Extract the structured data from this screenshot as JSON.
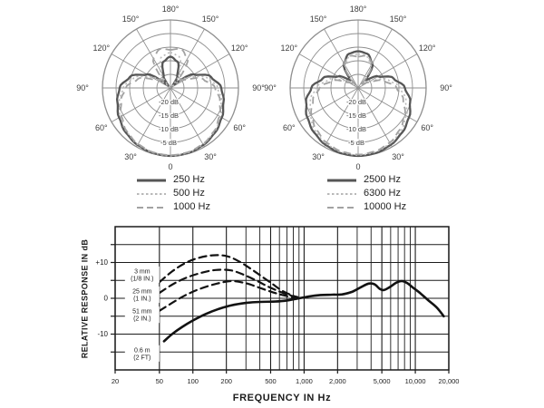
{
  "colors": {
    "background": "#ffffff",
    "polar_grid": "#8f8f8f",
    "polar_text": "#3d3d3d",
    "curve_solid": "#565656",
    "curve_dotted": "#b9b9b9",
    "curve_dashed": "#a2a2a2",
    "fr_ink": "#1c1c1c"
  },
  "chart_data": [
    {
      "id": "polar-left",
      "type": "polar",
      "angle_labels": [
        "180°",
        "150°",
        "120°",
        "90°",
        "60°",
        "30°",
        "0"
      ],
      "ring_db_values": [
        0,
        -5,
        -10,
        -15,
        -20
      ],
      "ring_labels": [
        "-20 dB",
        "-15 dB",
        "-10 dB",
        "-5 dB"
      ],
      "angles_deg": [
        0,
        15,
        30,
        45,
        60,
        75,
        90,
        105,
        120,
        135,
        150,
        165,
        180
      ],
      "series": [
        {
          "name": "250 Hz",
          "style": "solid",
          "response_db": [
            0,
            -0.2,
            -0.8,
            -1.8,
            -3.2,
            -4.8,
            -6.3,
            -9.5,
            -15,
            -24,
            -20,
            -15,
            -13.5
          ]
        },
        {
          "name": "500 Hz",
          "style": "dotted",
          "response_db": [
            0,
            -0.3,
            -1,
            -2.2,
            -3.8,
            -5.6,
            -7.6,
            -11,
            -17,
            -25,
            -17.5,
            -13,
            -12
          ]
        },
        {
          "name": "1000 Hz",
          "style": "dashed",
          "response_db": [
            -0.3,
            -0.5,
            -1.2,
            -2.4,
            -4.2,
            -6.2,
            -8.6,
            -12.5,
            -19,
            -21,
            -12.5,
            -10.2,
            -11
          ]
        }
      ],
      "legend": [
        {
          "label": "250 Hz",
          "style": "solid"
        },
        {
          "label": "500 Hz",
          "style": "dotted"
        },
        {
          "label": "1000 Hz",
          "style": "dashed"
        }
      ]
    },
    {
      "id": "polar-right",
      "type": "polar",
      "angle_labels": [
        "180°",
        "150°",
        "120°",
        "90°",
        "60°",
        "30°",
        "0"
      ],
      "ring_db_values": [
        0,
        -5,
        -10,
        -15,
        -20
      ],
      "ring_labels": [
        "-20 dB",
        "-15 dB",
        "-10 dB",
        "-5 dB"
      ],
      "angles_deg": [
        0,
        15,
        30,
        45,
        60,
        75,
        90,
        105,
        120,
        135,
        150,
        165,
        180
      ],
      "series": [
        {
          "name": "2500 Hz",
          "style": "solid",
          "response_db": [
            0,
            -0.2,
            -0.9,
            -2,
            -3.4,
            -5.2,
            -7.8,
            -11.5,
            -16.5,
            -21,
            -14.5,
            -12,
            -11.5
          ]
        },
        {
          "name": "6300 Hz",
          "style": "dotted",
          "response_db": [
            -0.3,
            -0.6,
            -1.4,
            -2.7,
            -4.6,
            -6.8,
            -9.5,
            -13.5,
            -19.5,
            -23,
            -15.5,
            -13,
            -12.5
          ]
        },
        {
          "name": "10000 Hz",
          "style": "dashed",
          "response_db": [
            -0.5,
            -0.9,
            -1.8,
            -3.3,
            -5.3,
            -7.8,
            -10.8,
            -15,
            -21,
            -24,
            -14.5,
            -12.8,
            -13.5
          ]
        }
      ],
      "legend": [
        {
          "label": "2500 Hz",
          "style": "solid"
        },
        {
          "label": "6300 Hz",
          "style": "dotted"
        },
        {
          "label": "10000 Hz",
          "style": "dashed"
        }
      ]
    },
    {
      "id": "frequency-response",
      "type": "line",
      "xlabel": "FREQUENCY IN Hz",
      "ylabel": "RELATIVE RESPONSE IN dB",
      "x_scale": "log",
      "xlim": [
        20,
        20000
      ],
      "ylim": [
        -20,
        20
      ],
      "y_gridline_step": 5,
      "x_major_ticks": [
        20,
        50,
        100,
        200,
        500,
        1000,
        2000,
        5000,
        10000,
        20000
      ],
      "x_tick_labels": [
        "20",
        "50",
        "100",
        "200",
        "500",
        "1,000",
        "2,000",
        "5,000",
        "10,000",
        "20,000"
      ],
      "x_minor_gridlines": [
        300,
        400,
        600,
        700,
        800,
        900,
        3000,
        4000,
        6000,
        7000,
        8000,
        9000
      ],
      "y_tick_labels": [
        {
          "value": 10,
          "label": "+10"
        },
        {
          "value": 0,
          "label": "0"
        },
        {
          "value": -10,
          "label": "-10"
        }
      ],
      "series": [
        {
          "name": "3 mm (1/8 IN.)",
          "label_lines": [
            "3 mm",
            "(1/8 IN.)"
          ],
          "style": "dashed",
          "label_hz": 35,
          "label_db": 6.6,
          "points": [
            [
              50,
              4.5
            ],
            [
              65,
              7.5
            ],
            [
              85,
              9.8
            ],
            [
              110,
              11.2
            ],
            [
              150,
              12
            ],
            [
              200,
              11.8
            ],
            [
              260,
              10.3
            ],
            [
              340,
              8
            ],
            [
              430,
              5.8
            ],
            [
              520,
              4
            ],
            [
              620,
              2.3
            ],
            [
              750,
              1
            ],
            [
              850,
              0.4
            ]
          ]
        },
        {
          "name": "25 mm (1 IN.)",
          "label_lines": [
            "25 mm",
            "(1 IN.)"
          ],
          "style": "dashed",
          "label_hz": 35,
          "label_db": 1.0,
          "points": [
            [
              50,
              1.5
            ],
            [
              65,
              3.8
            ],
            [
              85,
              5.6
            ],
            [
              115,
              7
            ],
            [
              160,
              7.9
            ],
            [
              220,
              7.8
            ],
            [
              290,
              6.5
            ],
            [
              380,
              4.8
            ],
            [
              480,
              3.2
            ],
            [
              600,
              1.9
            ],
            [
              750,
              0.8
            ],
            [
              900,
              0.3
            ]
          ]
        },
        {
          "name": "51 mm (2 IN.)",
          "label_lines": [
            "51 mm",
            "(2 IN.)"
          ],
          "style": "dashed",
          "label_hz": 35,
          "label_db": -4.6,
          "points": [
            [
              50,
              -3.5
            ],
            [
              65,
              -1.3
            ],
            [
              85,
              0.8
            ],
            [
              115,
              2.6
            ],
            [
              160,
              4
            ],
            [
              220,
              4.8
            ],
            [
              300,
              4.2
            ],
            [
              400,
              2.9
            ],
            [
              520,
              1.7
            ],
            [
              660,
              0.8
            ],
            [
              850,
              0.1
            ]
          ]
        },
        {
          "name": "0.6 m (2 FT)",
          "label_lines": [
            "0.6 m",
            "(2 FT)"
          ],
          "style": "solid",
          "label_hz": 35,
          "label_db": -15.4,
          "points": [
            [
              55,
              -12
            ],
            [
              65,
              -10
            ],
            [
              80,
              -8
            ],
            [
              100,
              -6.2
            ],
            [
              130,
              -4.4
            ],
            [
              170,
              -3
            ],
            [
              220,
              -2
            ],
            [
              300,
              -1.3
            ],
            [
              400,
              -1
            ],
            [
              550,
              -0.9
            ],
            [
              700,
              -0.6
            ],
            [
              900,
              0
            ],
            [
              1100,
              0.5
            ],
            [
              1400,
              0.9
            ],
            [
              1800,
              1
            ],
            [
              2200,
              1.1
            ],
            [
              2700,
              1.8
            ],
            [
              3200,
              3
            ],
            [
              3800,
              4.1
            ],
            [
              4300,
              3.9
            ],
            [
              4800,
              2.6
            ],
            [
              5200,
              2.3
            ],
            [
              5800,
              3
            ],
            [
              6800,
              4.4
            ],
            [
              7600,
              4.8
            ],
            [
              8500,
              4.2
            ],
            [
              9500,
              3
            ],
            [
              11000,
              1.5
            ],
            [
              13000,
              -0.5
            ],
            [
              15500,
              -2.5
            ],
            [
              18000,
              -5
            ]
          ]
        }
      ]
    }
  ]
}
